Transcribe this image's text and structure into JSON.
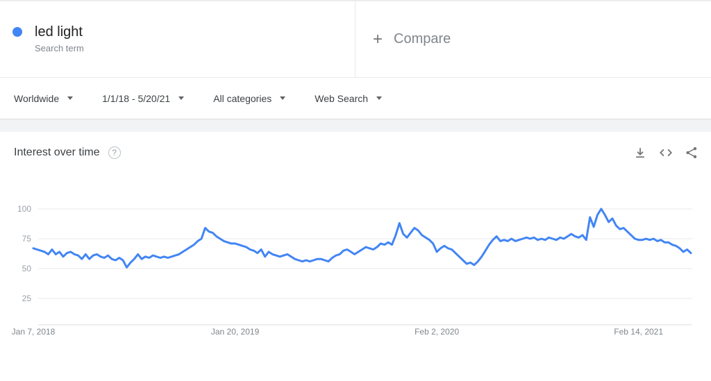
{
  "term_card": {
    "term": "led light",
    "subtitle": "Search term",
    "dot_color": "#4285f4"
  },
  "compare_card": {
    "plus": "+",
    "label": "Compare"
  },
  "filters": [
    {
      "label": "Worldwide"
    },
    {
      "label": "1/1/18 - 5/20/21"
    },
    {
      "label": "All categories"
    },
    {
      "label": "Web Search"
    }
  ],
  "chart_section": {
    "title": "Interest over time",
    "help_glyph": "?",
    "icons": [
      "download-icon",
      "embed-icon",
      "share-icon"
    ],
    "icon_color": "#757575"
  },
  "chart_data": {
    "type": "line",
    "title": "Interest over time",
    "series_name": "led light",
    "line_color": "#4285f4",
    "ylim": [
      0,
      100
    ],
    "grid": true,
    "y_ticks": [
      100,
      75,
      50,
      25
    ],
    "x_tick_labels": [
      "Jan 7, 2018",
      "Jan 20, 2019",
      "Feb 2, 2020",
      "Feb 14, 2021"
    ],
    "x_tick_indices": [
      0,
      54,
      108,
      162
    ],
    "x_unit": "week",
    "values": [
      67,
      66,
      65,
      64,
      62,
      66,
      62,
      64,
      60,
      63,
      64,
      62,
      61,
      58,
      62,
      58,
      61,
      62,
      60,
      59,
      61,
      58,
      57,
      59,
      57,
      51,
      55,
      58,
      62,
      58,
      60,
      59,
      61,
      60,
      59,
      60,
      59,
      60,
      61,
      62,
      64,
      66,
      68,
      70,
      73,
      75,
      84,
      81,
      80,
      77,
      75,
      73,
      72,
      71,
      71,
      70,
      69,
      68,
      66,
      65,
      63,
      66,
      60,
      64,
      62,
      61,
      60,
      61,
      62,
      60,
      58,
      57,
      56,
      57,
      56,
      57,
      58,
      58,
      57,
      56,
      59,
      61,
      62,
      65,
      66,
      64,
      62,
      64,
      66,
      68,
      67,
      66,
      68,
      71,
      70,
      72,
      70,
      78,
      88,
      79,
      76,
      80,
      84,
      82,
      78,
      76,
      74,
      71,
      64,
      67,
      69,
      67,
      66,
      63,
      60,
      57,
      54,
      55,
      53,
      56,
      60,
      65,
      70,
      74,
      77,
      73,
      74,
      73,
      75,
      73,
      74,
      75,
      76,
      75,
      76,
      74,
      75,
      74,
      76,
      75,
      74,
      76,
      75,
      77,
      79,
      77,
      76,
      78,
      74,
      93,
      85,
      95,
      100,
      95,
      89,
      92,
      86,
      83,
      84,
      81,
      78,
      75,
      74,
      74,
      75,
      74,
      75,
      73,
      74,
      72,
      72,
      70,
      69,
      67,
      64,
      66,
      63
    ]
  }
}
